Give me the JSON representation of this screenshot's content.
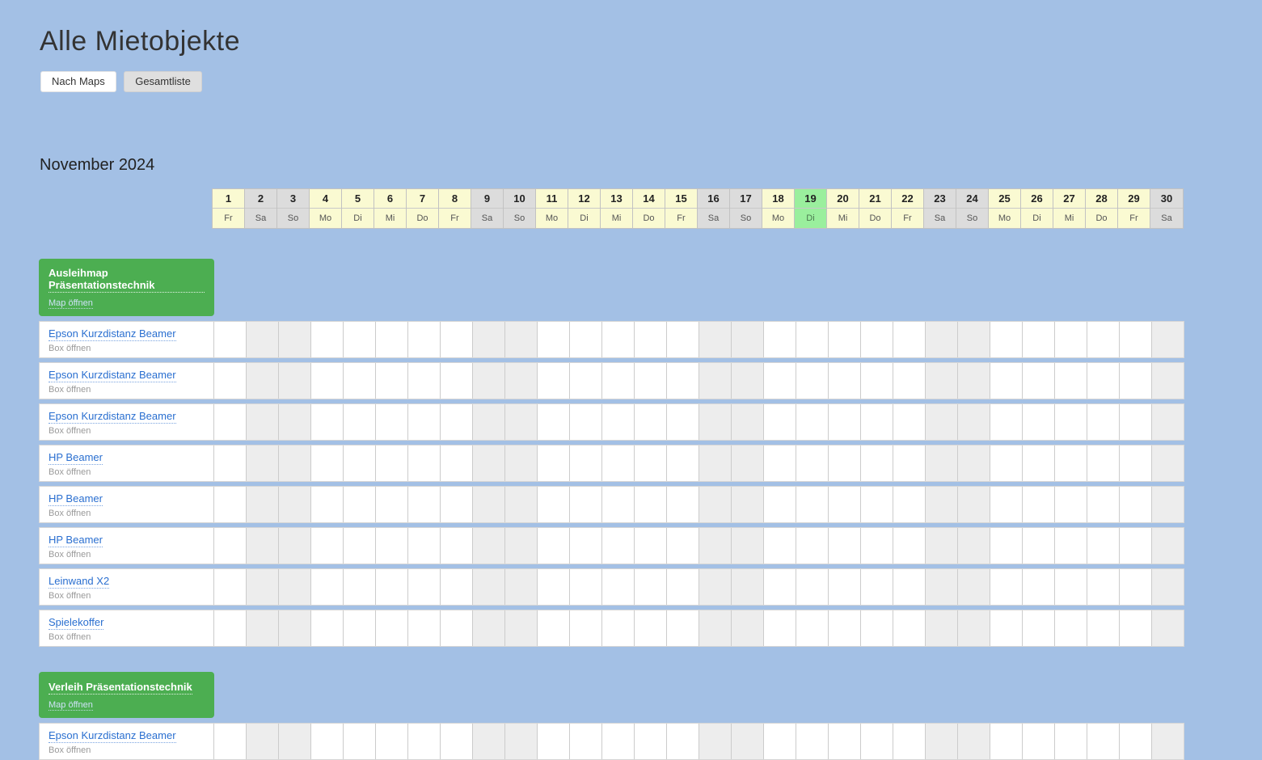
{
  "page": {
    "title": "Alle Mietobjekte",
    "buttons": [
      {
        "label": "Nach Maps"
      },
      {
        "label": "Gesamtliste"
      }
    ]
  },
  "calendar": {
    "month_title": "November 2024",
    "days": [
      {
        "num": "1",
        "weekday": "Fr",
        "weekend": false,
        "today": false
      },
      {
        "num": "2",
        "weekday": "Sa",
        "weekend": true,
        "today": false
      },
      {
        "num": "3",
        "weekday": "So",
        "weekend": true,
        "today": false
      },
      {
        "num": "4",
        "weekday": "Mo",
        "weekend": false,
        "today": false
      },
      {
        "num": "5",
        "weekday": "Di",
        "weekend": false,
        "today": false
      },
      {
        "num": "6",
        "weekday": "Mi",
        "weekend": false,
        "today": false
      },
      {
        "num": "7",
        "weekday": "Do",
        "weekend": false,
        "today": false
      },
      {
        "num": "8",
        "weekday": "Fr",
        "weekend": false,
        "today": false
      },
      {
        "num": "9",
        "weekday": "Sa",
        "weekend": true,
        "today": false
      },
      {
        "num": "10",
        "weekday": "So",
        "weekend": true,
        "today": false
      },
      {
        "num": "11",
        "weekday": "Mo",
        "weekend": false,
        "today": false
      },
      {
        "num": "12",
        "weekday": "Di",
        "weekend": false,
        "today": false
      },
      {
        "num": "13",
        "weekday": "Mi",
        "weekend": false,
        "today": false
      },
      {
        "num": "14",
        "weekday": "Do",
        "weekend": false,
        "today": false
      },
      {
        "num": "15",
        "weekday": "Fr",
        "weekend": false,
        "today": false
      },
      {
        "num": "16",
        "weekday": "Sa",
        "weekend": true,
        "today": false
      },
      {
        "num": "17",
        "weekday": "So",
        "weekend": true,
        "today": false
      },
      {
        "num": "18",
        "weekday": "Mo",
        "weekend": false,
        "today": false
      },
      {
        "num": "19",
        "weekday": "Di",
        "weekend": false,
        "today": true
      },
      {
        "num": "20",
        "weekday": "Mi",
        "weekend": false,
        "today": false
      },
      {
        "num": "21",
        "weekday": "Do",
        "weekend": false,
        "today": false
      },
      {
        "num": "22",
        "weekday": "Fr",
        "weekend": false,
        "today": false
      },
      {
        "num": "23",
        "weekday": "Sa",
        "weekend": true,
        "today": false
      },
      {
        "num": "24",
        "weekday": "So",
        "weekend": true,
        "today": false
      },
      {
        "num": "25",
        "weekday": "Mo",
        "weekend": false,
        "today": false
      },
      {
        "num": "26",
        "weekday": "Di",
        "weekend": false,
        "today": false
      },
      {
        "num": "27",
        "weekday": "Mi",
        "weekend": false,
        "today": false
      },
      {
        "num": "28",
        "weekday": "Do",
        "weekend": false,
        "today": false
      },
      {
        "num": "29",
        "weekday": "Fr",
        "weekend": false,
        "today": false
      },
      {
        "num": "30",
        "weekday": "Sa",
        "weekend": true,
        "today": false
      }
    ]
  },
  "sections": [
    {
      "title": "Ausleihmap Präsentationstechnik",
      "map_link": "Map öffnen",
      "items": [
        {
          "name": "Epson Kurzdistanz Beamer",
          "sub": "Box öffnen"
        },
        {
          "name": "Epson Kurzdistanz Beamer",
          "sub": "Box öffnen"
        },
        {
          "name": "Epson Kurzdistanz Beamer",
          "sub": "Box öffnen"
        },
        {
          "name": "HP Beamer",
          "sub": "Box öffnen"
        },
        {
          "name": "HP Beamer",
          "sub": "Box öffnen"
        },
        {
          "name": "HP Beamer",
          "sub": "Box öffnen"
        },
        {
          "name": "Leinwand X2",
          "sub": "Box öffnen"
        },
        {
          "name": "Spielekoffer",
          "sub": "Box öffnen"
        }
      ]
    },
    {
      "title": "Verleih Präsentationstechnik",
      "map_link": "Map öffnen",
      "items": [
        {
          "name": "Epson Kurzdistanz Beamer",
          "sub": "Box öffnen"
        }
      ]
    }
  ],
  "colors": {
    "page_background": "#a3c0e5",
    "header_weekday_bg": "#fafad2",
    "header_weekend_bg": "#dcdcdc",
    "today_bg": "#9aef9d",
    "section_card_green": "#4cae51",
    "item_link_blue": "#2a6fd0",
    "body_weekend_cell_bg": "#ededed"
  }
}
